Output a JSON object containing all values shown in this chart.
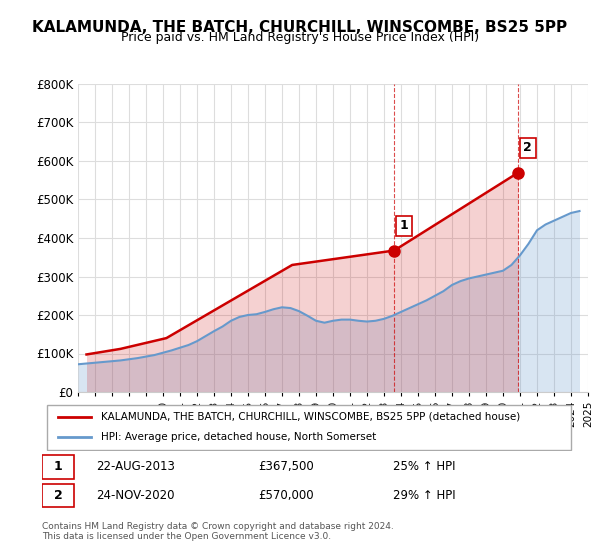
{
  "title": "KALAMUNDA, THE BATCH, CHURCHILL, WINSCOMBE, BS25 5PP",
  "subtitle": "Price paid vs. HM Land Registry's House Price Index (HPI)",
  "ylabel": "",
  "ylim": [
    0,
    800000
  ],
  "yticks": [
    0,
    100000,
    200000,
    300000,
    400000,
    500000,
    600000,
    700000,
    800000
  ],
  "ytick_labels": [
    "£0",
    "£100K",
    "£200K",
    "£300K",
    "£400K",
    "£500K",
    "£600K",
    "£700K",
    "£800K"
  ],
  "house_color": "#cc0000",
  "hpi_color": "#6699cc",
  "annotation1_date": "22-AUG-2013",
  "annotation1_price": "£367,500",
  "annotation1_pct": "25% ↑ HPI",
  "annotation2_date": "24-NOV-2020",
  "annotation2_price": "£570,000",
  "annotation2_pct": "29% ↑ HPI",
  "legend_house": "KALAMUNDA, THE BATCH, CHURCHILL, WINSCOMBE, BS25 5PP (detached house)",
  "legend_hpi": "HPI: Average price, detached house, North Somerset",
  "footer": "Contains HM Land Registry data © Crown copyright and database right 2024.\nThis data is licensed under the Open Government Licence v3.0.",
  "hpi_years": [
    1995,
    1995.5,
    1996,
    1996.5,
    1997,
    1997.5,
    1998,
    1998.5,
    1999,
    1999.5,
    2000,
    2000.5,
    2001,
    2001.5,
    2002,
    2002.5,
    2003,
    2003.5,
    2004,
    2004.5,
    2005,
    2005.5,
    2006,
    2006.5,
    2007,
    2007.5,
    2008,
    2008.5,
    2009,
    2009.5,
    2010,
    2010.5,
    2011,
    2011.5,
    2012,
    2012.5,
    2013,
    2013.5,
    2014,
    2014.5,
    2015,
    2015.5,
    2016,
    2016.5,
    2017,
    2017.5,
    2018,
    2018.5,
    2019,
    2019.5,
    2020,
    2020.5,
    2021,
    2021.5,
    2022,
    2022.5,
    2023,
    2023.5,
    2024,
    2024.5
  ],
  "hpi_values": [
    72000,
    74000,
    76000,
    78000,
    80000,
    82000,
    85000,
    88000,
    92000,
    96000,
    102000,
    108000,
    115000,
    122000,
    132000,
    145000,
    158000,
    170000,
    185000,
    195000,
    200000,
    202000,
    208000,
    215000,
    220000,
    218000,
    210000,
    198000,
    185000,
    180000,
    185000,
    188000,
    188000,
    185000,
    183000,
    185000,
    190000,
    198000,
    208000,
    218000,
    228000,
    238000,
    250000,
    262000,
    278000,
    288000,
    295000,
    300000,
    305000,
    310000,
    315000,
    330000,
    355000,
    385000,
    420000,
    435000,
    445000,
    455000,
    465000,
    470000
  ],
  "house_years": [
    1995.5,
    1997.5,
    2000.2,
    2007.6,
    2013.6,
    2020.9
  ],
  "house_values": [
    97500,
    112000,
    140000,
    330000,
    367500,
    570000
  ],
  "ann1_x": 2013.6,
  "ann1_y": 367500,
  "ann2_x": 2020.9,
  "ann2_y": 570000,
  "ann1_label": "1",
  "ann2_label": "2",
  "xmin": 1995,
  "xmax": 2025
}
